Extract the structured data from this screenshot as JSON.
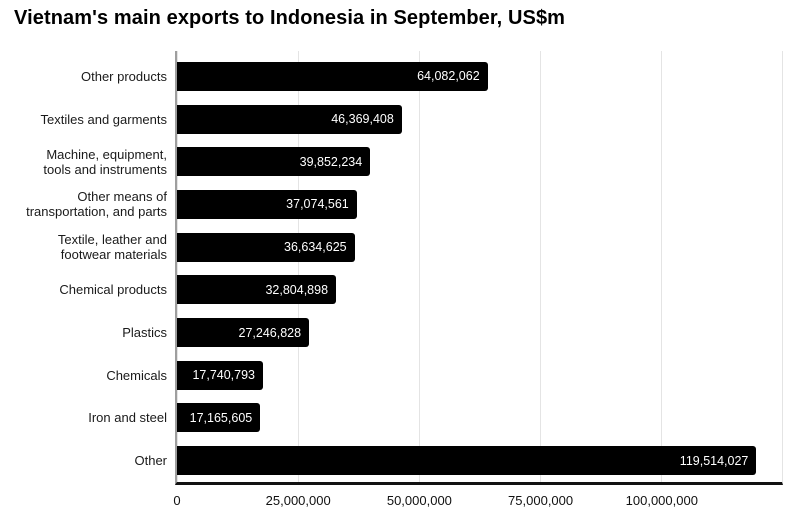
{
  "chart_data": {
    "type": "bar",
    "orientation": "horizontal",
    "title": "Vietnam's main exports to Indonesia in September, US$m",
    "categories": [
      "Other products",
      "Textiles and garments",
      "Machine, equipment,\ntools and instruments",
      "Other means of\ntransportation, and parts",
      "Textile, leather and\nfootwear materials",
      "Chemical products",
      "Plastics",
      "Chemicals",
      "Iron and steel",
      "Other"
    ],
    "values": [
      64082062,
      46369408,
      39852234,
      37074561,
      36634625,
      32804898,
      27246828,
      17740793,
      17165605,
      119514027
    ],
    "value_labels": [
      "64,082,062",
      "46,369,408",
      "39,852,234",
      "37,074,561",
      "36,634,625",
      "32,804,898",
      "27,246,828",
      "17,740,793",
      "17,165,605",
      "119,514,027"
    ],
    "xlabel": "",
    "ylabel": "",
    "xlim": [
      0,
      125000000
    ],
    "x_ticks": [
      {
        "value": 0,
        "label": "0"
      },
      {
        "value": 25000000,
        "label": "25,000,000"
      },
      {
        "value": 50000000,
        "label": "50,000,000"
      },
      {
        "value": 75000000,
        "label": "75,000,000"
      },
      {
        "value": 100000000,
        "label": "100,000,000"
      }
    ],
    "grid": true,
    "legend": "none",
    "colors": {
      "bar": "#000000",
      "value_label": "#ffffff",
      "gridline": "#e4e4e4",
      "axis_line_left": "#9e9e9e",
      "axis_line_bottom": "#111111",
      "text": "#1a1a1a"
    }
  }
}
